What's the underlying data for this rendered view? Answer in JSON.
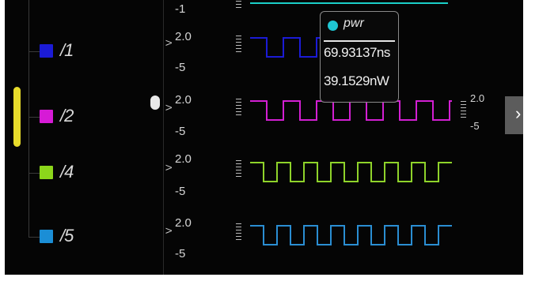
{
  "channels": [
    {
      "label": "/1",
      "color": "#1b1bd6"
    },
    {
      "label": "/2",
      "color": "#d61bd6"
    },
    {
      "label": "/4",
      "color": "#8cd61b"
    },
    {
      "label": "/5",
      "color": "#1b8ed6"
    }
  ],
  "scales": {
    "top_partial_tick": "-1",
    "rows": [
      {
        "max": "2.0",
        "min": "-5",
        "unit": "V"
      },
      {
        "max": "2.0",
        "min": "-5",
        "unit": "V"
      },
      {
        "max": "2.0",
        "min": "-5",
        "unit": "V"
      },
      {
        "max": "2.0",
        "min": "-5",
        "unit": "V"
      }
    ]
  },
  "waveforms": [
    {
      "name": "top",
      "color": "#1ad0c8"
    },
    {
      "name": "/1",
      "color": "#1b1bd6"
    },
    {
      "name": "/2",
      "color": "#d31fd3"
    },
    {
      "name": "/4",
      "color": "#8fd32a"
    },
    {
      "name": "/5",
      "color": "#2a8ed3"
    }
  ],
  "tooltip": {
    "signal": "pwr",
    "time": "69.93137ns",
    "power": "39.1529nW",
    "color": "#1fc7d4"
  },
  "side_scale": {
    "max": "2.0",
    "min": "-5"
  },
  "expand": {
    "icon": "chevron-right-icon",
    "glyph": "›"
  }
}
